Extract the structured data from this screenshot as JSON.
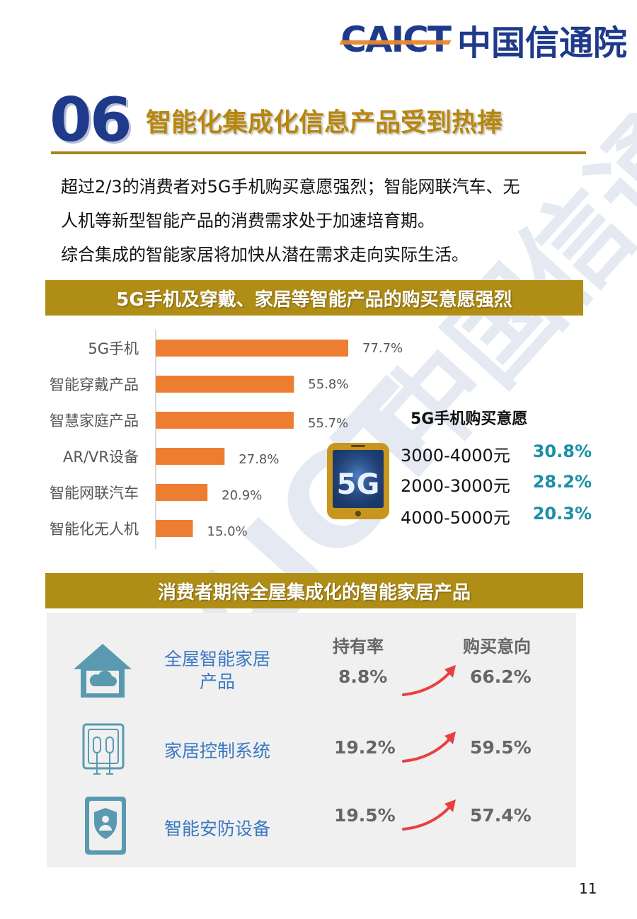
{
  "header": {
    "logo_en": "CAICT",
    "logo_zh": "中国信通院"
  },
  "section": {
    "number": "06",
    "title": "智能化集成化信息产品受到热捧"
  },
  "intro": [
    "超过2/3的消费者对5G手机购买意愿强烈；智能网联汽车、无",
    "人机等新型智能产品的消费需求处于加速培育期。",
    "综合集成的智能家居将加快从潜在需求走向实际生活。"
  ],
  "banner1": "5G手机及穿戴、家居等智能产品的购买意愿强烈",
  "chart_data": {
    "type": "bar",
    "orientation": "horizontal",
    "categories": [
      "5G手机",
      "智能穿戴产品",
      "智慧家庭产品",
      "AR/VR设备",
      "智能网联汽车",
      "智能化无人机"
    ],
    "values": [
      77.7,
      55.8,
      55.7,
      27.8,
      20.9,
      15.0
    ],
    "value_labels": [
      "77.7%",
      "55.8%",
      "55.7%",
      "27.8%",
      "20.9%",
      "15.0%"
    ],
    "bar_color": "#ed7d31",
    "xlim": [
      0,
      100
    ],
    "grid": false
  },
  "purchase5g": {
    "title": "5G手机购买意愿",
    "icon": "5g-phone-icon",
    "icon_text": "5G",
    "rows": [
      {
        "range": "3000-4000元",
        "pct": "30.8%"
      },
      {
        "range": "2000-3000元",
        "pct": "28.2%"
      },
      {
        "range": "4000-5000元",
        "pct": "20.3%"
      }
    ]
  },
  "banner2": "消费者期待全屋集成化的智能家居产品",
  "smarthome": {
    "col_own": "持有率",
    "col_buy": "购买意向",
    "rows": [
      {
        "label_line1": "全屋智能家居",
        "label_line2": "产品",
        "own": "8.8%",
        "buy": "66.2%",
        "icon": "smart-house-icon"
      },
      {
        "label_line1": "家居控制系统",
        "label_line2": "",
        "own": "19.2%",
        "buy": "59.5%",
        "icon": "control-panel-icon"
      },
      {
        "label_line1": "智能安防设备",
        "label_line2": "",
        "own": "19.5%",
        "buy": "57.4%",
        "icon": "security-shield-icon"
      }
    ]
  },
  "colors": {
    "brand_blue": "#1f3a8a",
    "gold": "#b08d15",
    "bar": "#ed7d31",
    "teal": "#1a8fa6",
    "label_blue": "#3b78c4",
    "arrow_red": "#e84040"
  },
  "page_number": "11"
}
